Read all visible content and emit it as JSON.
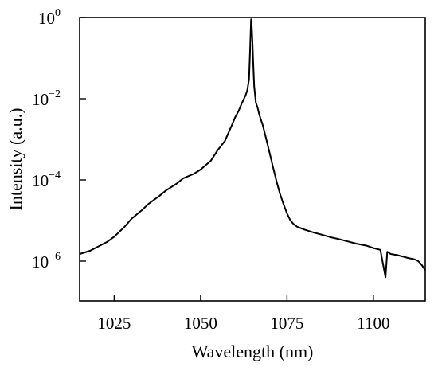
{
  "chart_data": {
    "type": "line",
    "title": "",
    "xlabel": "Wavelength (nm)",
    "ylabel": "Intensity (a.u.)",
    "xlim": [
      1015,
      1115
    ],
    "ylim": [
      1e-07,
      1
    ],
    "yscale": "log",
    "grid": false,
    "x_ticks": [
      {
        "value": 1025,
        "label": "1025"
      },
      {
        "value": 1050,
        "label": "1050"
      },
      {
        "value": 1075,
        "label": "1075"
      },
      {
        "value": 1100,
        "label": "1100"
      }
    ],
    "y_ticks": [
      {
        "value": 1,
        "base": "10",
        "exp": "0"
      },
      {
        "value": 0.01,
        "base": "10",
        "exp": "−2"
      },
      {
        "value": 0.0001,
        "base": "10",
        "exp": "−4"
      },
      {
        "value": 1e-06,
        "base": "10",
        "exp": "−6"
      }
    ],
    "series": [
      {
        "color": "#000000",
        "x": [
          1015,
          1018,
          1020,
          1023,
          1025,
          1028,
          1030,
          1033,
          1035,
          1038,
          1040,
          1043,
          1045,
          1048,
          1050,
          1053,
          1055,
          1057,
          1058,
          1059,
          1060,
          1061,
          1062,
          1063,
          1063.5,
          1064,
          1064.3,
          1064.6,
          1064.8,
          1065,
          1065.2,
          1065.5,
          1066,
          1066.5,
          1067,
          1068,
          1069,
          1070,
          1071,
          1072,
          1073,
          1074,
          1075,
          1076,
          1077,
          1078,
          1080,
          1083,
          1085,
          1088,
          1090,
          1093,
          1095,
          1098,
          1100,
          1102,
          1103.5,
          1104,
          1105,
          1107,
          1110,
          1112,
          1113,
          1114,
          1115
        ],
        "y": [
          1.5e-06,
          1.8e-06,
          2.2e-06,
          3e-06,
          4e-06,
          7e-06,
          1.1e-05,
          1.8e-05,
          2.6e-05,
          4e-05,
          5.5e-05,
          8e-05,
          0.00011,
          0.00014,
          0.00018,
          0.0003,
          0.00055,
          0.0009,
          0.0014,
          0.0022,
          0.0035,
          0.005,
          0.008,
          0.012,
          0.016,
          0.03,
          0.15,
          0.9,
          0.6,
          0.25,
          0.08,
          0.02,
          0.008,
          0.006,
          0.004,
          0.0022,
          0.001,
          0.00045,
          0.0002,
          9e-05,
          4.5e-05,
          2.5e-05,
          1.5e-05,
          1e-05,
          8e-06,
          7e-06,
          6e-06,
          5e-06,
          4.5e-06,
          3.8e-06,
          3.5e-06,
          3e-06,
          2.7e-06,
          2.4e-06,
          2.1e-06,
          1.9e-06,
          4e-07,
          1.7e-06,
          1.5e-06,
          1.4e-06,
          1.2e-06,
          1.1e-06,
          1e-06,
          8e-07,
          6e-07
        ]
      }
    ]
  }
}
